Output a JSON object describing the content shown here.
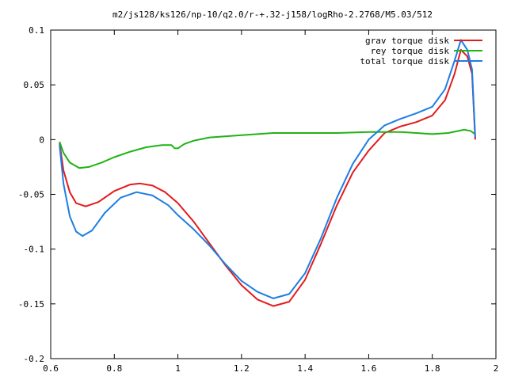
{
  "chart_data": {
    "type": "line",
    "title": "m2/js128/ks126/np-10/q2.0/r-+.32-j158/logRho-2.2768/M5.03/512",
    "xlabel": "",
    "ylabel": "",
    "xlim": [
      0.6,
      2.0
    ],
    "ylim": [
      -0.2,
      0.1
    ],
    "grid": false,
    "legend_position": "top-right",
    "x_ticks": [
      "0.6",
      "0.8",
      "1",
      "1.2",
      "1.4",
      "1.6",
      "1.8",
      "2"
    ],
    "x_tick_values": [
      0.6,
      0.8,
      1.0,
      1.2,
      1.4,
      1.6,
      1.8,
      2.0
    ],
    "y_ticks": [
      "0.1",
      "0.05",
      "0",
      "-0.05",
      "-0.1",
      "-0.15",
      "-0.2"
    ],
    "y_tick_values": [
      0.1,
      0.05,
      0.0,
      -0.05,
      -0.1,
      -0.15,
      -0.2
    ],
    "series": [
      {
        "name": "grav torque disk",
        "color": "#e41a1c",
        "x": [
          0.628,
          0.64,
          0.66,
          0.68,
          0.71,
          0.75,
          0.8,
          0.85,
          0.88,
          0.92,
          0.96,
          1.0,
          1.05,
          1.1,
          1.15,
          1.2,
          1.25,
          1.3,
          1.35,
          1.4,
          1.45,
          1.5,
          1.55,
          1.6,
          1.65,
          1.7,
          1.75,
          1.8,
          1.84,
          1.87,
          1.89,
          1.91,
          1.925,
          1.935
        ],
        "y": [
          -0.003,
          -0.028,
          -0.048,
          -0.058,
          -0.061,
          -0.057,
          -0.047,
          -0.041,
          -0.04,
          -0.042,
          -0.048,
          -0.058,
          -0.075,
          -0.095,
          -0.115,
          -0.133,
          -0.146,
          -0.152,
          -0.148,
          -0.128,
          -0.095,
          -0.06,
          -0.03,
          -0.01,
          0.006,
          0.012,
          0.016,
          0.022,
          0.036,
          0.06,
          0.082,
          0.076,
          0.06,
          0.0
        ]
      },
      {
        "name": "rey torque disk",
        "color": "#1fb314",
        "x": [
          0.628,
          0.64,
          0.66,
          0.69,
          0.72,
          0.76,
          0.8,
          0.85,
          0.9,
          0.95,
          0.98,
          0.99,
          1.0,
          1.02,
          1.05,
          1.1,
          1.2,
          1.3,
          1.4,
          1.5,
          1.6,
          1.7,
          1.75,
          1.8,
          1.85,
          1.9,
          1.92,
          1.935
        ],
        "y": [
          -0.002,
          -0.012,
          -0.021,
          -0.026,
          -0.025,
          -0.021,
          -0.016,
          -0.011,
          -0.007,
          -0.005,
          -0.005,
          -0.008,
          -0.008,
          -0.004,
          -0.001,
          0.002,
          0.004,
          0.006,
          0.006,
          0.006,
          0.007,
          0.007,
          0.006,
          0.005,
          0.006,
          0.009,
          0.008,
          0.005
        ]
      },
      {
        "name": "total torque disk",
        "color": "#1c7ee3",
        "x": [
          0.628,
          0.64,
          0.66,
          0.68,
          0.7,
          0.73,
          0.77,
          0.82,
          0.87,
          0.92,
          0.97,
          1.0,
          1.05,
          1.1,
          1.15,
          1.2,
          1.25,
          1.3,
          1.35,
          1.4,
          1.45,
          1.5,
          1.55,
          1.6,
          1.65,
          1.7,
          1.75,
          1.8,
          1.84,
          1.87,
          1.89,
          1.91,
          1.925,
          1.935
        ],
        "y": [
          -0.005,
          -0.04,
          -0.07,
          -0.084,
          -0.088,
          -0.083,
          -0.067,
          -0.053,
          -0.048,
          -0.051,
          -0.06,
          -0.069,
          -0.082,
          -0.097,
          -0.114,
          -0.129,
          -0.139,
          -0.145,
          -0.141,
          -0.122,
          -0.09,
          -0.053,
          -0.022,
          0.0,
          0.013,
          0.019,
          0.024,
          0.03,
          0.046,
          0.072,
          0.091,
          0.082,
          0.064,
          0.002
        ]
      }
    ]
  }
}
